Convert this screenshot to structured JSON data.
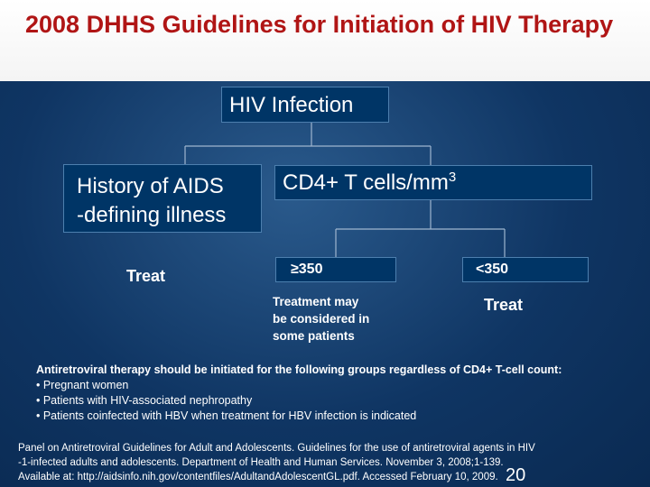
{
  "slide": {
    "title": "2008 DHHS Guidelines for Initiation of HIV Therapy"
  },
  "diagram": {
    "root": "HIV Infection",
    "left_branch": {
      "line1": "History of AIDS",
      "line2": "-defining illness",
      "outcome": "Treat"
    },
    "right_branch": {
      "label": "CD4+ T cells/mm",
      "superscript": "3"
    },
    "sub_left": {
      "label": "≥350",
      "outcome": [
        "Treatment may",
        "be considered in",
        "some patients"
      ]
    },
    "sub_right": {
      "label": "<350",
      "outcome": "Treat"
    }
  },
  "notes": {
    "heading": "Antiretroviral therapy should be initiated for the following groups regardless of CD4+ T-cell count:",
    "items": [
      "• Pregnant women",
      "• Patients with HIV-associated nephropathy",
      "• Patients coinfected with HBV when treatment for HBV infection is indicated"
    ]
  },
  "citation": {
    "lines": [
      "Panel on Antiretroviral Guidelines for Adult and Adolescents. Guidelines for the use of antiretroviral agents in HIV",
      "-1-infected adults and adolescents. Department of Health and Human Services. November 3, 2008;1-139.",
      "Available at: http://aidsinfo.nih.gov/contentfiles/AdultandAdolescentGL.pdf. Accessed February 10, 2009."
    ]
  },
  "page_number": "20"
}
